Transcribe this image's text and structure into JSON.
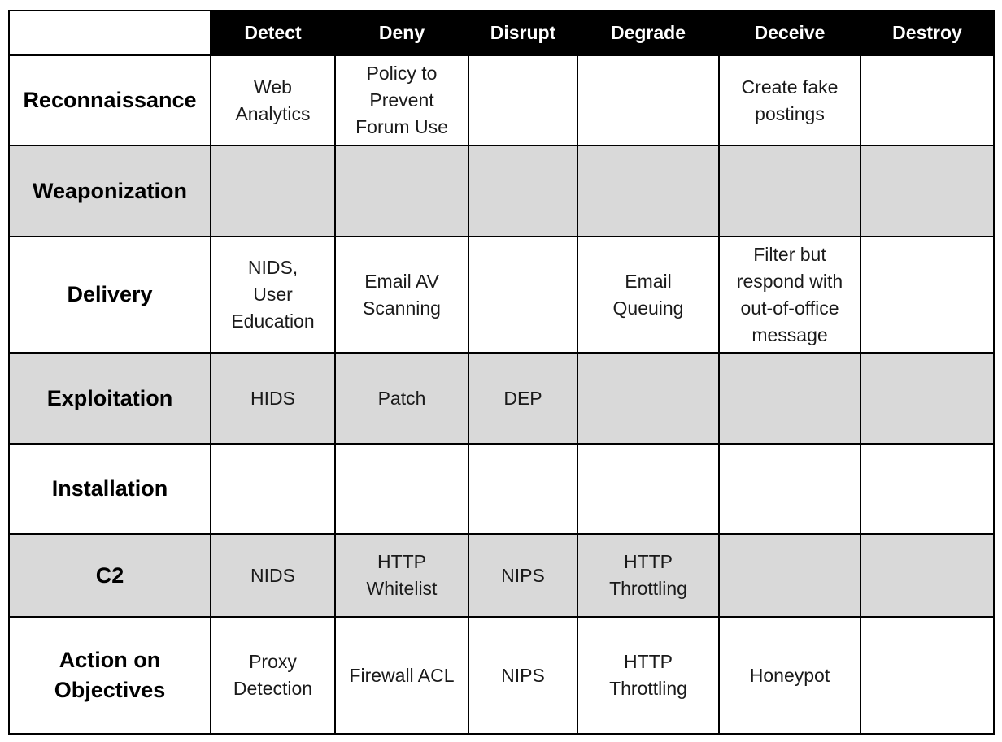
{
  "columns": [
    "Detect",
    "Deny",
    "Disrupt",
    "Degrade",
    "Deceive",
    "Destroy"
  ],
  "rows": [
    {
      "phase": "Reconnaissance",
      "cells": [
        "Web\nAnalytics",
        "Policy to\nPrevent\nForum Use",
        "",
        "",
        "Create fake\npostings",
        ""
      ]
    },
    {
      "phase": "Weaponization",
      "cells": [
        "",
        "",
        "",
        "",
        "",
        ""
      ]
    },
    {
      "phase": "Delivery",
      "cells": [
        "NIDS,\nUser\nEducation",
        "Email AV\nScanning",
        "",
        "Email\nQueuing",
        "Filter but\nrespond with\nout-of-office\nmessage",
        ""
      ]
    },
    {
      "phase": "Exploitation",
      "cells": [
        "HIDS",
        "Patch",
        "DEP",
        "",
        "",
        ""
      ]
    },
    {
      "phase": "Installation",
      "cells": [
        "",
        "",
        "",
        "",
        "",
        ""
      ]
    },
    {
      "phase": "C2",
      "cells": [
        "NIDS",
        "HTTP\nWhitelist",
        "NIPS",
        "HTTP\nThrottling",
        "",
        ""
      ]
    },
    {
      "phase": "Action on\nObjectives",
      "cells": [
        "Proxy\nDetection",
        "Firewall ACL",
        "NIPS",
        "HTTP\nThrottling",
        "Honeypot",
        ""
      ]
    }
  ],
  "colors": {
    "header_bg": "#000000",
    "header_text": "#ffffff",
    "shaded_row_bg": "#d9d9d9",
    "plain_row_bg": "#ffffff",
    "border": "#000000"
  }
}
